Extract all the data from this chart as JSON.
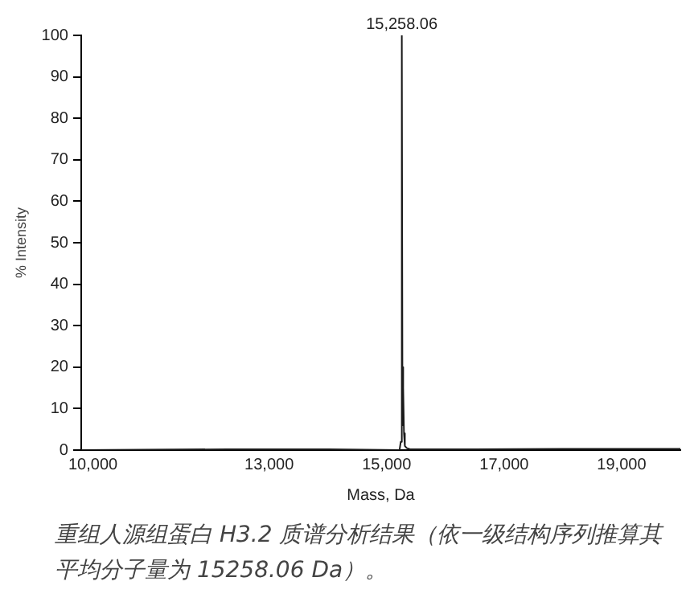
{
  "chart_data": {
    "type": "line",
    "xlabel": "Mass, Da",
    "ylabel": "% Intensity",
    "x": [
      9800,
      12300,
      14000,
      15220,
      15240,
      15258.06,
      15270,
      15278,
      15285,
      15295,
      15310,
      15340,
      15400,
      16500,
      18000,
      20000
    ],
    "series": [
      {
        "color": "#1a1a1a",
        "values": [
          0,
          0.2,
          0.2,
          0,
          2,
          100,
          6,
          20,
          15,
          4,
          1,
          0.5,
          0.2,
          0.2,
          0.3,
          0.3
        ]
      }
    ],
    "xlim": [
      9800,
      20000
    ],
    "xticks": [
      {
        "value": 10000,
        "label": "10,000"
      },
      {
        "value": 13000,
        "label": "13,000"
      },
      {
        "value": 15000,
        "label": "15,000"
      },
      {
        "value": 17000,
        "label": "17,000"
      },
      {
        "value": 19000,
        "label": "19,000"
      }
    ],
    "ylim": [
      0,
      100
    ],
    "yticks": [
      0,
      10,
      20,
      30,
      40,
      50,
      60,
      70,
      80,
      90,
      100
    ],
    "grid": false,
    "legend": false,
    "marker": "none",
    "line_style": "solid",
    "annotations": [
      {
        "text": "15,258.06",
        "x": 15258.06,
        "y": 100
      },
      "重组人源组蛋白 H3.2 质谱分析结果（依一级结构序列推算其平均分子量为 15258.06 Da）。"
    ]
  }
}
